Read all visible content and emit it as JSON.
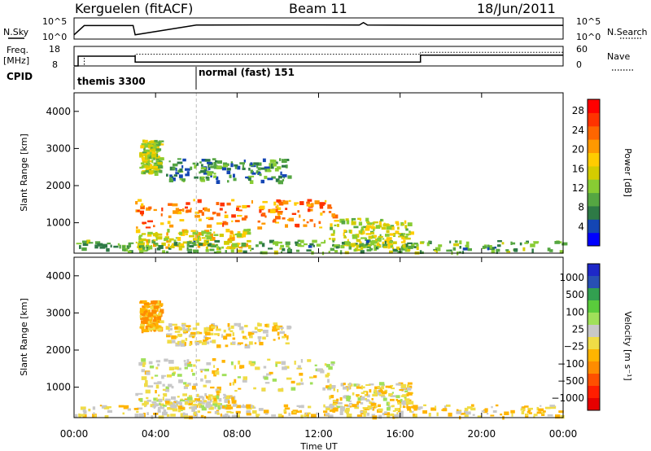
{
  "header": {
    "station": "Kerguelen (fitACF)",
    "beam": "Beam 11",
    "date": "18/Jun/2011"
  },
  "labels": {
    "nsky": "N.Sky",
    "nsearch": "N.Search",
    "freq_line1": "Freq.",
    "freq_line2": "[MHz]",
    "nave": "Nave",
    "cpid": "CPID",
    "ylabel": "Slant Range [km]",
    "xlabel": "Time UT",
    "power_label": "Power [dB]",
    "velocity_label": "Velocity [m s⁻¹]"
  },
  "cpid_programs": [
    {
      "name": "themis 3300",
      "start_hour": 0
    },
    {
      "name": "normal (fast) 151",
      "start_hour": 6
    }
  ],
  "chart_data": [
    {
      "type": "line",
      "title": "N.Sky / N.Search",
      "left_ticks": [
        "10^5",
        "10^0"
      ],
      "right_ticks": [
        "10^5",
        "10^0"
      ],
      "series": [
        {
          "name": "N.Sky",
          "x": [
            0,
            0.5,
            2.9,
            3.0,
            6,
            9,
            12,
            14,
            14.2,
            14.4,
            18,
            24
          ],
          "y": [
            1,
            3.2,
            3.2,
            1,
            3.3,
            3.35,
            3.35,
            3.3,
            3.9,
            3.3,
            3.25,
            3.25
          ]
        },
        {
          "name": "N.Search",
          "x": [
            0,
            24
          ],
          "y": [
            0,
            0
          ]
        }
      ],
      "xlim": [
        0,
        24
      ],
      "ylim": [
        0,
        5
      ]
    },
    {
      "type": "line",
      "title": "Freq. [MHz] / Nave",
      "left_ticks": [
        "18",
        "8"
      ],
      "right_ticks": [
        "60",
        "0"
      ],
      "series": [
        {
          "name": "Freq.",
          "x": [
            0,
            0.2,
            0.2,
            3.0,
            3.0,
            17.0,
            17.0,
            24
          ],
          "y": [
            8,
            8,
            13,
            13,
            10,
            10,
            13.5,
            13.5
          ]
        },
        {
          "name": "Nave",
          "x": [
            0,
            0.5,
            0.5,
            3.0,
            3.0,
            17.0,
            17.0,
            24
          ],
          "y": [
            0,
            0,
            30,
            30,
            36,
            36,
            42,
            42
          ]
        }
      ],
      "xlim": [
        0,
        24
      ],
      "ylim": [
        8,
        18
      ]
    },
    {
      "type": "heatmap",
      "title": "Power [dB]",
      "xlabel": "",
      "ylabel": "Slant Range [km]",
      "x_ticks": [
        "00:00",
        "04:00",
        "08:00",
        "12:00",
        "16:00",
        "20:00",
        "00:00"
      ],
      "y_ticks": [
        "1000",
        "2000",
        "3000",
        "4000"
      ],
      "xlim": [
        0,
        24
      ],
      "ylim": [
        180,
        4500
      ],
      "colorbar": {
        "label": "Power [dB]",
        "ticks": [
          "4",
          "8",
          "12",
          "16",
          "20",
          "24",
          "28"
        ],
        "range": [
          0,
          30
        ],
        "colors": [
          "#0000ff",
          "#1446b4",
          "#2e7a46",
          "#55a642",
          "#88cc33",
          "#d4cc00",
          "#ffcc00",
          "#ff9900",
          "#ff6600",
          "#ff3300",
          "#ff0000"
        ]
      },
      "regions": [
        {
          "hours": [
            3.0,
            12.8
          ],
          "range_km": [
            850,
            1600
          ],
          "level": 22
        },
        {
          "hours": [
            3.0,
            8.5
          ],
          "range_km": [
            300,
            800
          ],
          "level": 16
        },
        {
          "hours": [
            3.2,
            4.2
          ],
          "range_km": [
            2300,
            3200
          ],
          "level": 14
        },
        {
          "hours": [
            4.5,
            10.5
          ],
          "range_km": [
            2100,
            2700
          ],
          "level": 8
        },
        {
          "hours": [
            12.5,
            16.5
          ],
          "range_km": [
            300,
            1100
          ],
          "level": 14
        },
        {
          "hours": [
            0,
            24
          ],
          "range_km": [
            180,
            500
          ],
          "level": 10
        }
      ]
    },
    {
      "type": "heatmap",
      "title": "Velocity [m s⁻¹]",
      "xlabel": "Time UT",
      "ylabel": "Slant Range [km]",
      "x_ticks": [
        "00:00",
        "04:00",
        "08:00",
        "12:00",
        "16:00",
        "20:00",
        "00:00"
      ],
      "y_ticks": [
        "1000",
        "2000",
        "3000",
        "4000"
      ],
      "xlim": [
        0,
        24
      ],
      "ylim": [
        180,
        4500
      ],
      "colorbar": {
        "label": "Velocity [m s⁻¹]",
        "ticks": [
          "1000",
          "500",
          "100",
          "25",
          "−25",
          "−100",
          "−500",
          "−1000"
        ],
        "range": [
          -1200,
          1200
        ],
        "colors": [
          "#1e28c8",
          "#2850b4",
          "#32a050",
          "#5acc3c",
          "#a0e05a",
          "#c8c8c8",
          "#f0dc46",
          "#ffb400",
          "#ff8c00",
          "#ff5000",
          "#ff1e00",
          "#e60000"
        ]
      },
      "regions": [
        {
          "hours": [
            3.0,
            12.8
          ],
          "range_km": [
            850,
            1750
          ],
          "level": 0
        },
        {
          "hours": [
            3.0,
            8.0
          ],
          "range_km": [
            400,
            800
          ],
          "level": 0
        },
        {
          "hours": [
            3.2,
            4.2
          ],
          "range_km": [
            2500,
            3300
          ],
          "level": -300
        },
        {
          "hours": [
            4.5,
            10.5
          ],
          "range_km": [
            2100,
            2700
          ],
          "level": -100
        },
        {
          "hours": [
            12.5,
            16.5
          ],
          "range_km": [
            400,
            1100
          ],
          "level": -50
        },
        {
          "hours": [
            0,
            24
          ],
          "range_km": [
            180,
            500
          ],
          "level": -100
        }
      ]
    }
  ]
}
